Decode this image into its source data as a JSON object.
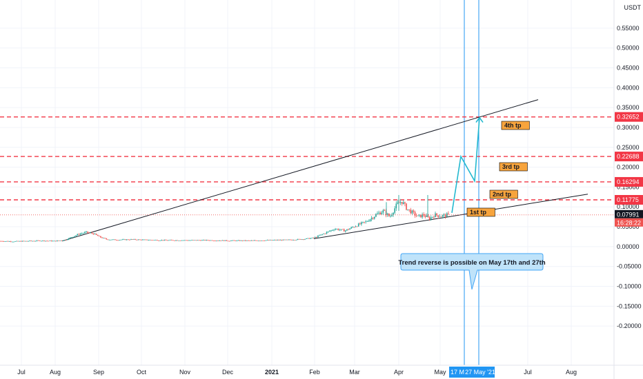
{
  "chart_data": {
    "type": "candlestick",
    "currency_label": "USDT",
    "colors": {
      "up": "#26a69a",
      "down": "#ef5350",
      "level_line": "#f23645",
      "trend_line": "#131722",
      "projection": "#22b8cf",
      "vline": "#2196f3",
      "last_price": "#131722",
      "timer": "#ef5350",
      "tp_label": "#f7a43d",
      "tag_red": "#f23645"
    },
    "y_axis": {
      "min": -0.25,
      "max": 0.6,
      "ticks": [
        "0.55000",
        "0.50000",
        "0.45000",
        "0.40000",
        "0.35000",
        "0.30000",
        "0.25000",
        "0.20000",
        "0.15000",
        "0.10000",
        "0.05000",
        "0.00000",
        "-0.05000",
        "-0.10000",
        "-0.15000",
        "-0.20000"
      ]
    },
    "x_axis": {
      "ticks": [
        "Jul",
        "Aug",
        "Sep",
        "Oct",
        "Nov",
        "Dec",
        "2021",
        "Feb",
        "Mar",
        "Apr",
        "May",
        "Jul",
        "Aug"
      ]
    },
    "price_levels": [
      {
        "value": 0.32652,
        "label": "0.32652",
        "tp": "4th tp"
      },
      {
        "value": 0.22688,
        "label": "0.22688",
        "tp": "3rd tp"
      },
      {
        "value": 0.16294,
        "label": "0.16294",
        "tp": "2nd tp"
      },
      {
        "value": 0.11775,
        "label": "0.11775",
        "tp": "1st tp"
      }
    ],
    "last_price": {
      "value": 0.07991,
      "label": "0.07991",
      "timer": "16:28:22"
    },
    "trend_lines": [
      {
        "from": [
          90,
          0.014
        ],
        "to": [
          780,
          0.37
        ]
      },
      {
        "from": [
          455,
          0.02
        ],
        "to": [
          852,
          0.132
        ]
      }
    ],
    "projection_path": [
      [
        655,
        0.085
      ],
      [
        668,
        0.227
      ],
      [
        688,
        0.165
      ],
      [
        695,
        0.325
      ]
    ],
    "vertical_lines": [
      {
        "x": 673,
        "label": "17 M"
      },
      {
        "x": 694,
        "label": "27 May '21"
      }
    ],
    "annotation": "Trend reverse is possible on May 17th and 27th",
    "price_series": [
      [
        0,
        0.014
      ],
      [
        20,
        0.013
      ],
      [
        40,
        0.014
      ],
      [
        60,
        0.015
      ],
      [
        80,
        0.014
      ],
      [
        95,
        0.017
      ],
      [
        105,
        0.025
      ],
      [
        115,
        0.032
      ],
      [
        125,
        0.036
      ],
      [
        135,
        0.033
      ],
      [
        145,
        0.024
      ],
      [
        155,
        0.018
      ],
      [
        170,
        0.017
      ],
      [
        190,
        0.018
      ],
      [
        210,
        0.017
      ],
      [
        240,
        0.016
      ],
      [
        270,
        0.016
      ],
      [
        300,
        0.016
      ],
      [
        330,
        0.015
      ],
      [
        360,
        0.015
      ],
      [
        390,
        0.016
      ],
      [
        420,
        0.017
      ],
      [
        440,
        0.019
      ],
      [
        455,
        0.022
      ],
      [
        470,
        0.033
      ],
      [
        485,
        0.045
      ],
      [
        500,
        0.04
      ],
      [
        515,
        0.052
      ],
      [
        530,
        0.062
      ],
      [
        545,
        0.08
      ],
      [
        555,
        0.09
      ],
      [
        565,
        0.075
      ],
      [
        575,
        0.105
      ],
      [
        582,
        0.115
      ],
      [
        590,
        0.095
      ],
      [
        598,
        0.085
      ],
      [
        606,
        0.075
      ],
      [
        614,
        0.08
      ],
      [
        622,
        0.07
      ],
      [
        630,
        0.08
      ],
      [
        640,
        0.077
      ],
      [
        650,
        0.08
      ]
    ]
  }
}
